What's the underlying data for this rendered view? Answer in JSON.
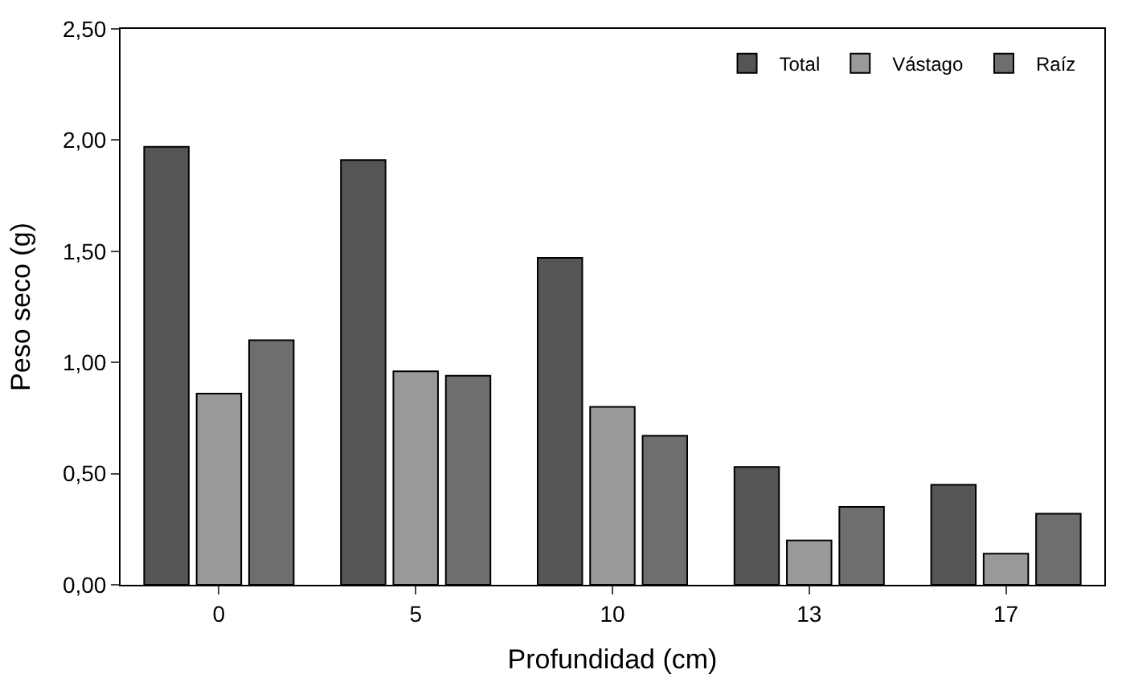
{
  "chart_data": {
    "type": "bar",
    "xlabel": "Profundidad (cm)",
    "ylabel": "Peso seco (g)",
    "categories": [
      "0",
      "5",
      "10",
      "13",
      "17"
    ],
    "series": [
      {
        "name": "Total",
        "color": "#555555",
        "values": [
          1.97,
          1.91,
          1.47,
          0.53,
          0.45
        ]
      },
      {
        "name": "Vástago",
        "color": "#999999",
        "values": [
          0.86,
          0.96,
          0.8,
          0.2,
          0.14
        ]
      },
      {
        "name": "Raíz",
        "color": "#6e6e6e",
        "values": [
          1.1,
          0.94,
          0.67,
          0.35,
          0.32
        ]
      }
    ],
    "ylim": [
      0,
      2.5
    ],
    "yticks": [
      {
        "value": 0,
        "label": "0,00"
      },
      {
        "value": 0.5,
        "label": "0,50"
      },
      {
        "value": 1,
        "label": "1,00"
      },
      {
        "value": 1.5,
        "label": "1,50"
      },
      {
        "value": 2,
        "label": "2,00"
      },
      {
        "value": 2.5,
        "label": "2,50"
      }
    ],
    "grid": false,
    "legend": "top right"
  }
}
